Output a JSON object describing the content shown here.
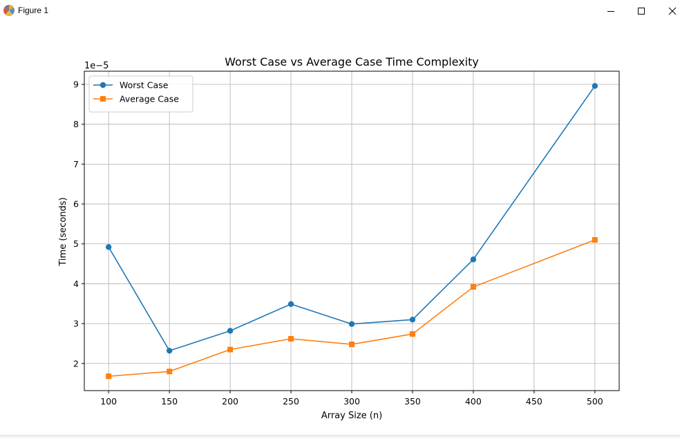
{
  "window": {
    "title": "Figure 1",
    "app_icon": "matplotlib-icon",
    "controls": {
      "minimize": "minimize-icon",
      "maximize": "maximize-icon",
      "close": "close-icon"
    }
  },
  "chart_data": {
    "type": "line",
    "title": "Worst Case vs Average Case Time Complexity",
    "xlabel": "Array Size (n)",
    "ylabel": "Time (seconds)",
    "y_offset_label": "1e−5",
    "x": [
      100,
      150,
      200,
      250,
      300,
      350,
      400,
      500
    ],
    "xticks": [
      100,
      150,
      200,
      250,
      300,
      350,
      400,
      450,
      500
    ],
    "yticks": [
      2,
      3,
      4,
      5,
      6,
      7,
      8,
      9
    ],
    "xlim": [
      80,
      520
    ],
    "ylim": [
      1.32,
      9.33
    ],
    "grid": true,
    "legend_position": "top-left",
    "series": [
      {
        "name": "Worst Case",
        "values": [
          4.92,
          2.32,
          2.82,
          3.49,
          2.99,
          3.1,
          4.61,
          8.96
        ],
        "color": "#1f77b4",
        "marker": "circle"
      },
      {
        "name": "Average Case",
        "values": [
          1.68,
          1.8,
          2.35,
          2.62,
          2.48,
          2.74,
          3.92,
          5.1
        ],
        "color": "#ff7f0e",
        "marker": "square"
      }
    ]
  }
}
